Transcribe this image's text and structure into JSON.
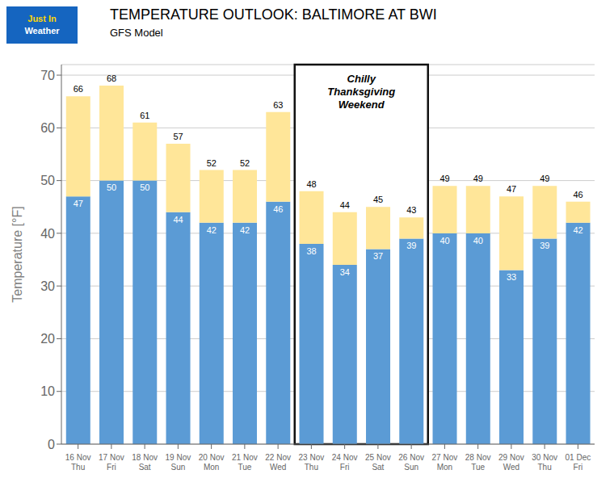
{
  "chart_data": {
    "type": "bar",
    "title": "TEMPERATURE OUTLOOK: BALTIMORE AT BWI",
    "subtitle": "GFS Model",
    "ylabel": "Temperature [°F]",
    "logo_text": [
      "Just In",
      "Weather"
    ],
    "categories": [
      "16 Nov\nThu",
      "17 Nov\nFri",
      "18 Nov\nSat",
      "19 Nov\nSun",
      "20 Nov\nMon",
      "21 Nov\nTue",
      "22 Nov\nWed",
      "23 Nov\nThu",
      "24 Nov\nFri",
      "25 Nov\nSat",
      "26 Nov\nSun",
      "27 Nov\nMon",
      "28 Nov\nTue",
      "29 Nov\nWed",
      "30 Nov\nThu",
      "01 Dec\nFri"
    ],
    "series": [
      {
        "color": "#5B9BD5",
        "values": [
          47,
          50,
          50,
          44,
          42,
          42,
          46,
          38,
          34,
          37,
          39,
          40,
          40,
          33,
          39,
          42
        ]
      },
      {
        "color": "#FFE699",
        "values": [
          66,
          68,
          61,
          57,
          52,
          52,
          63,
          48,
          44,
          45,
          43,
          49,
          49,
          47,
          49,
          46
        ]
      }
    ],
    "data_labels": true,
    "annotations": [
      {
        "text": "Chilly\nThanksgiving\nWeekend",
        "x_start": "23 Nov\nThu",
        "x_end": "26 Nov\nSun"
      }
    ],
    "ylim": [
      0,
      72
    ],
    "yticks": [
      0,
      10,
      20,
      30,
      40,
      50,
      60,
      70
    ],
    "grid": true
  }
}
